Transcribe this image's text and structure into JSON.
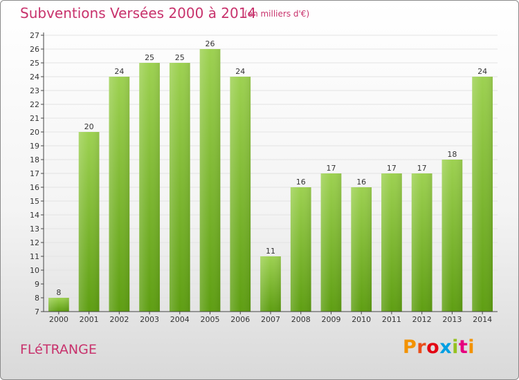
{
  "header": {
    "title": "Subventions Versées 2000 à 2014",
    "subtitle": "(en milliers d'€)"
  },
  "footer": {
    "commune": "FLéTRANGE",
    "logo_letters": [
      "P",
      "r",
      "o",
      "x",
      "i",
      "t",
      "i"
    ],
    "logo_colors": [
      "#f39200",
      "#e94e1b",
      "#e30613",
      "#009fe3",
      "#95c11f",
      "#e6007e",
      "#f39200"
    ]
  },
  "colors": {
    "bar_top": "#9dd151",
    "bar_bottom": "#5e9e12",
    "grid": "#e3e3e3",
    "axis": "#444444",
    "accent": "#c8326c"
  },
  "chart_data": {
    "type": "bar",
    "title": "Subventions Versées 2000 à 2014",
    "subtitle": "(en milliers d'€)",
    "xlabel": "",
    "ylabel": "",
    "categories": [
      "2000",
      "2001",
      "2002",
      "2003",
      "2004",
      "2005",
      "2006",
      "2007",
      "2008",
      "2009",
      "2010",
      "2011",
      "2012",
      "2013",
      "2014"
    ],
    "values": [
      8,
      20,
      24,
      25,
      25,
      26,
      24,
      11,
      16,
      17,
      16,
      17,
      17,
      18,
      24
    ],
    "ylim": [
      7,
      27
    ],
    "yticks": [
      7,
      8,
      9,
      10,
      11,
      12,
      13,
      14,
      15,
      16,
      17,
      18,
      19,
      20,
      21,
      22,
      23,
      24,
      25,
      26,
      27
    ],
    "grid": true,
    "data_labels": true
  }
}
